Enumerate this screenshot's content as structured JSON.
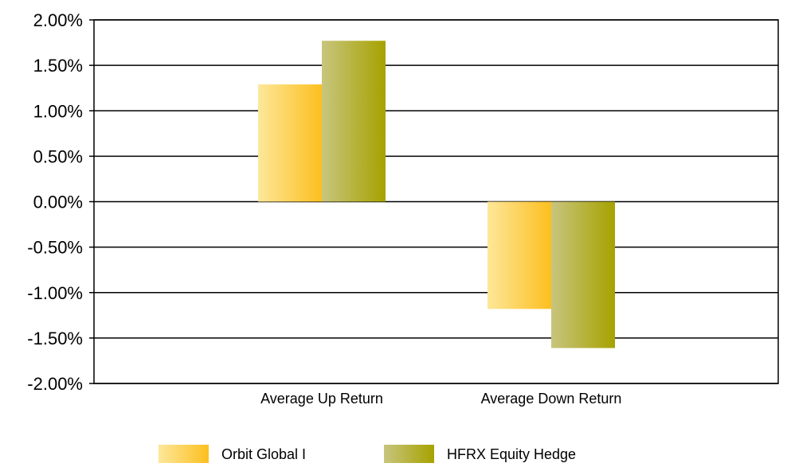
{
  "chart_data": {
    "type": "bar",
    "categories": [
      "Average Up Return",
      "Average Down Return"
    ],
    "series": [
      {
        "name": "Orbit Global I",
        "values": [
          1.29,
          -1.18
        ],
        "color_light": "#fde79a",
        "color_dark": "#fdbf1f"
      },
      {
        "name": "HFRX Equity Hedge",
        "values": [
          1.77,
          -1.61
        ],
        "color_light": "#c8c57e",
        "color_dark": "#a6a200"
      }
    ],
    "ylim": [
      -2.0,
      2.0
    ],
    "y_ticks": [
      2.0,
      1.5,
      1.0,
      0.5,
      0.0,
      -0.5,
      -1.0,
      -1.5,
      -2.0
    ],
    "y_tick_labels": [
      "2.00%",
      "1.50%",
      "1.00%",
      "0.50%",
      "0.00%",
      "-0.50%",
      "-1.00%",
      "-1.50%",
      "-2.00%"
    ],
    "grid": true,
    "legend_position": "bottom",
    "title": "",
    "xlabel": "",
    "ylabel": ""
  }
}
